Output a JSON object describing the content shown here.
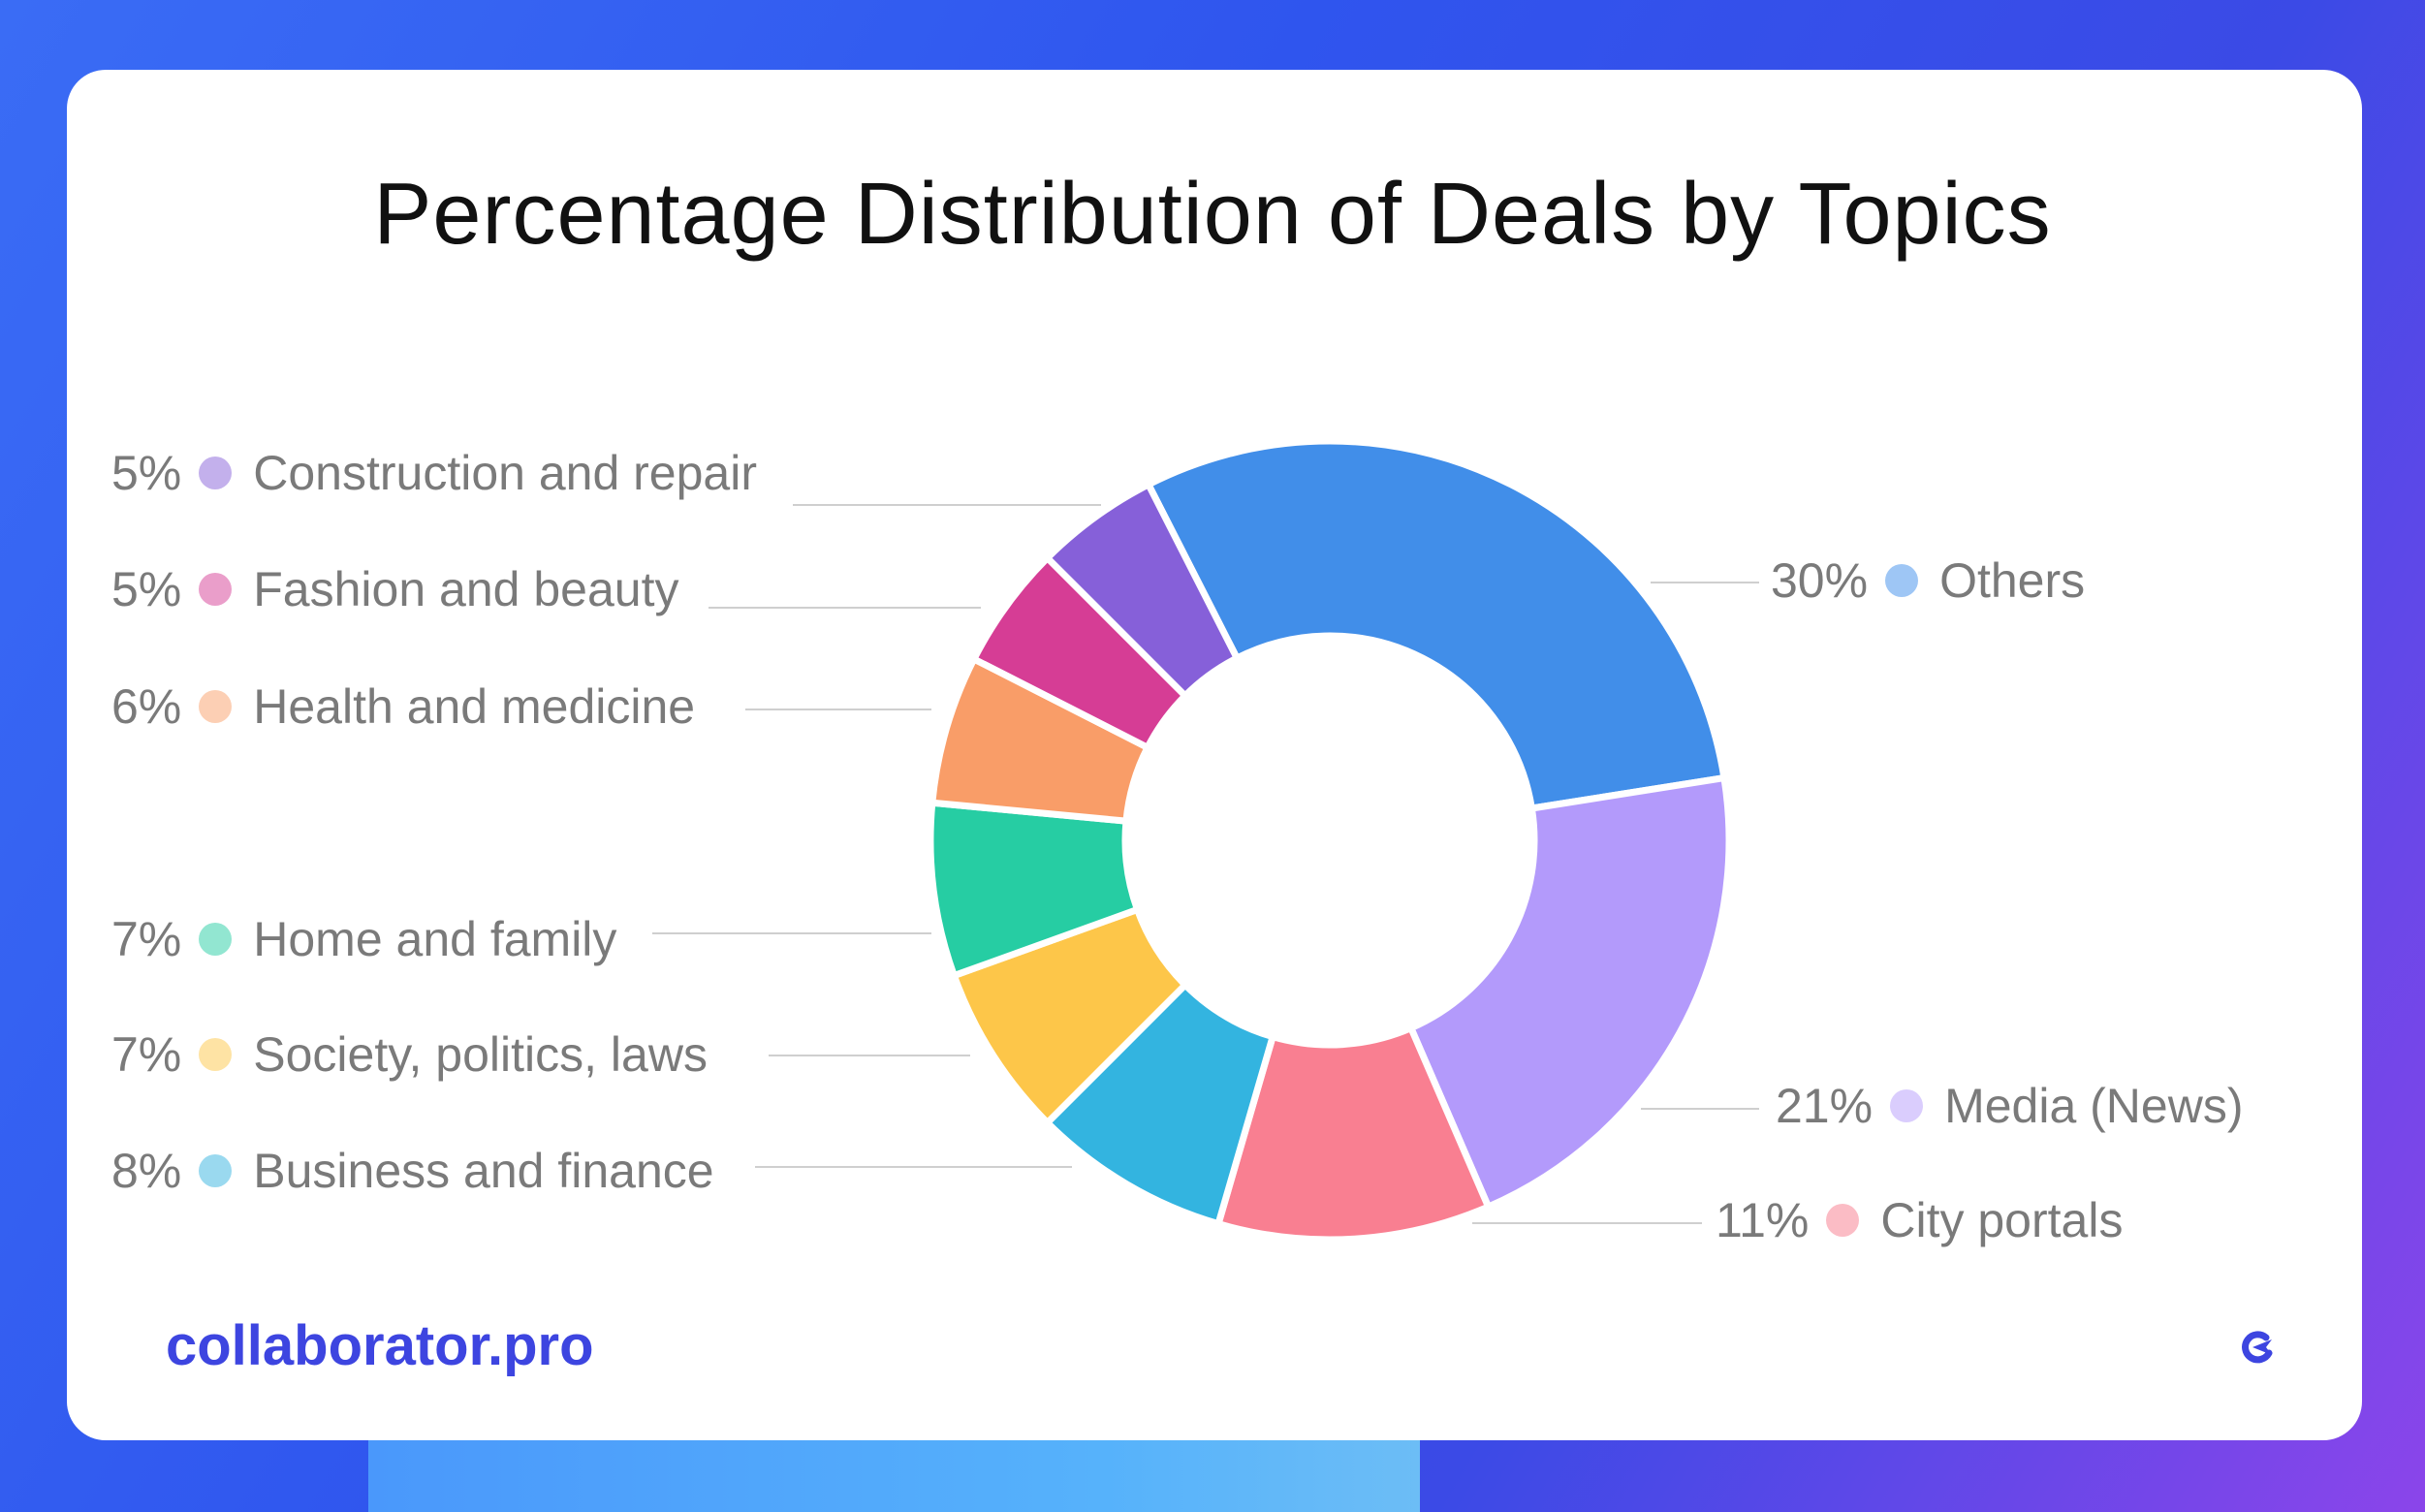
{
  "chart_data": {
    "type": "pie",
    "title": "Percentage Distribution of Deals by Topics",
    "donut": true,
    "slices": [
      {
        "label": "Others",
        "value": 30,
        "display": "30%",
        "color": "#418ee9",
        "dot": "#9ec6f5",
        "side": "right"
      },
      {
        "label": "Media (News)",
        "value": 21,
        "display": "21%",
        "color": "#b39afb",
        "dot": "#dacdfd",
        "side": "right"
      },
      {
        "label": "City portals",
        "value": 11,
        "display": "11%",
        "color": "#f97f91",
        "dot": "#fbbcc5",
        "side": "right"
      },
      {
        "label": "Business and finance",
        "value": 8,
        "display": "8%",
        "color": "#33b4e0",
        "dot": "#9ad9ef",
        "side": "left"
      },
      {
        "label": "Society, politics, laws",
        "value": 7,
        "display": "7%",
        "color": "#fdc649",
        "dot": "#fee3a4",
        "side": "left"
      },
      {
        "label": "Home and family",
        "value": 7,
        "display": "7%",
        "color": "#26cda3",
        "dot": "#92e6d1",
        "side": "left"
      },
      {
        "label": "Health and medicine",
        "value": 6,
        "display": "6%",
        "color": "#f99d68",
        "dot": "#fccfb4",
        "side": "left"
      },
      {
        "label": "Fashion and beauty",
        "value": 5,
        "display": "5%",
        "color": "#d63d95",
        "dot": "#ea9eca",
        "side": "left"
      },
      {
        "label": "Construction and repair",
        "value": 5,
        "display": "5%",
        "color": "#8660d9",
        "dot": "#c3b0ec",
        "side": "left"
      }
    ]
  },
  "footer": {
    "brand": "collaborator.pro",
    "brand_color": "#3d45e0",
    "logo_icon": "collaborator-logo-icon"
  }
}
